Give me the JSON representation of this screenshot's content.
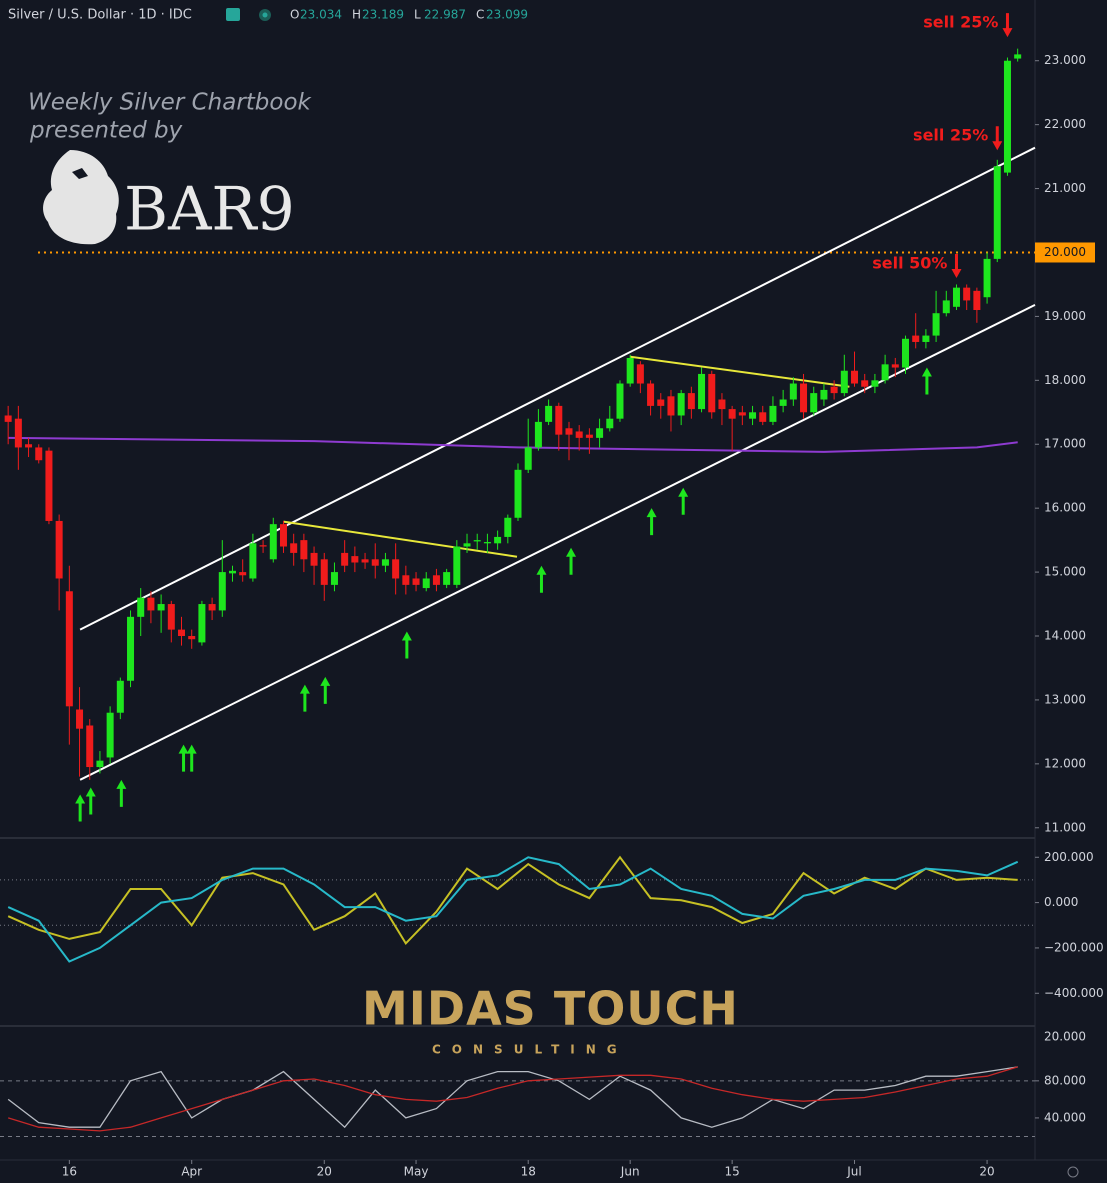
{
  "chart_data": {
    "type": "candlestick",
    "title": "Silver / U.S. Dollar · 1D · IDC",
    "ohlc_header": [
      {
        "label": "O",
        "value": "23.034"
      },
      {
        "label": "H",
        "value": "23.189"
      },
      {
        "label": "L",
        "value": "22.987"
      },
      {
        "label": "C",
        "value": "23.099"
      }
    ],
    "watermark": {
      "line1": "Weekly Silver Chartbook",
      "line2": "presented by",
      "brand": "BAR9",
      "company": "MIDAS TOUCH",
      "tagline": "CONSULTING"
    },
    "xlim": [
      -0.8,
      100.7
    ],
    "xticks": [
      {
        "value": 6,
        "label": "16"
      },
      {
        "value": 18,
        "label": "Apr"
      },
      {
        "value": 31,
        "label": "20"
      },
      {
        "value": 40,
        "label": "May"
      },
      {
        "value": 51,
        "label": "18"
      },
      {
        "value": 61,
        "label": "Jun"
      },
      {
        "value": 71,
        "label": "15"
      },
      {
        "value": 83,
        "label": "Jul"
      },
      {
        "value": 96,
        "label": "20"
      }
    ],
    "ylim": [
      10.84,
      23.95
    ],
    "yticks": [
      {
        "value": 23,
        "label": "23.000"
      },
      {
        "value": 22,
        "label": "22.000"
      },
      {
        "value": 21,
        "label": "21.000"
      },
      {
        "value": 20,
        "label": "20.000"
      },
      {
        "value": 19,
        "label": "19.000"
      },
      {
        "value": 18,
        "label": "18.000"
      },
      {
        "value": 17,
        "label": "17.000"
      },
      {
        "value": 16,
        "label": "16.000"
      },
      {
        "value": 15,
        "label": "15.000"
      },
      {
        "value": 14,
        "label": "14.000"
      },
      {
        "value": 13,
        "label": "13.000"
      },
      {
        "value": 12,
        "label": "12.000"
      },
      {
        "value": 11,
        "label": "11.000"
      }
    ],
    "up_color": "#1ee61e",
    "down_color": "#f01c1c",
    "open": [
      17.45,
      17.4,
      17.0,
      16.95,
      16.9,
      15.8,
      14.7,
      12.85,
      12.6,
      11.95,
      12.1,
      12.8,
      13.3,
      14.3,
      14.6,
      14.4,
      14.5,
      14.1,
      14.0,
      13.9,
      14.5,
      14.4,
      14.98,
      15.0,
      14.9,
      15.42,
      15.2,
      15.75,
      15.45,
      15.5,
      15.3,
      15.2,
      14.8,
      15.3,
      15.25,
      15.2,
      15.2,
      15.1,
      15.2,
      14.95,
      14.9,
      14.75,
      14.95,
      14.8,
      14.8,
      15.4,
      15.48,
      15.45,
      15.45,
      15.55,
      15.85,
      16.6,
      16.95,
      17.35,
      17.6,
      17.25,
      17.2,
      17.15,
      17.1,
      17.25,
      17.4,
      17.95,
      18.25,
      17.95,
      17.7,
      17.75,
      17.45,
      17.8,
      17.55,
      18.1,
      17.7,
      17.55,
      17.5,
      17.4,
      17.5,
      17.35,
      17.6,
      17.7,
      17.95,
      17.5,
      17.7,
      17.9,
      17.8,
      18.15,
      18.0,
      17.9,
      18.0,
      18.25,
      18.2,
      18.7,
      18.6,
      18.7,
      19.05,
      19.15,
      19.45,
      19.4,
      19.3,
      19.9,
      21.25,
      23.034
    ],
    "high": [
      17.6,
      17.6,
      17.1,
      17.0,
      16.95,
      15.9,
      15.1,
      13.2,
      12.7,
      12.2,
      12.9,
      13.35,
      14.4,
      14.75,
      14.7,
      14.65,
      14.55,
      14.3,
      14.1,
      14.55,
      14.6,
      15.5,
      15.1,
      15.2,
      15.6,
      15.5,
      15.85,
      15.8,
      15.6,
      15.6,
      15.4,
      15.3,
      15.15,
      15.5,
      15.4,
      15.3,
      15.45,
      15.3,
      15.45,
      15.1,
      15.0,
      15.0,
      15.05,
      15.05,
      15.5,
      15.6,
      15.6,
      15.6,
      15.65,
      15.9,
      16.7,
      17.4,
      17.55,
      17.7,
      17.65,
      17.35,
      17.3,
      17.25,
      17.4,
      17.6,
      18.0,
      18.4,
      18.3,
      18.0,
      17.8,
      17.85,
      17.85,
      17.9,
      18.2,
      18.15,
      17.8,
      17.6,
      17.6,
      17.6,
      17.6,
      17.75,
      17.85,
      18.05,
      18.1,
      17.9,
      17.95,
      18.0,
      18.4,
      18.45,
      18.1,
      18.1,
      18.4,
      18.35,
      18.7,
      19.05,
      18.8,
      19.4,
      19.4,
      19.5,
      19.5,
      19.45,
      20.0,
      21.45,
      23.05,
      23.189
    ],
    "low": [
      17.0,
      16.6,
      16.8,
      16.7,
      15.75,
      14.4,
      12.3,
      11.8,
      11.75,
      11.85,
      12.0,
      12.7,
      13.2,
      14.0,
      14.2,
      14.05,
      13.9,
      13.85,
      13.8,
      13.85,
      14.25,
      14.3,
      14.85,
      14.85,
      14.85,
      15.3,
      15.15,
      15.3,
      15.1,
      15.0,
      14.8,
      14.55,
      14.7,
      15.0,
      15.0,
      15.05,
      14.9,
      15.0,
      14.65,
      14.65,
      14.7,
      14.7,
      14.7,
      14.75,
      14.75,
      15.3,
      15.35,
      15.3,
      15.35,
      15.45,
      15.8,
      16.55,
      16.9,
      17.3,
      16.9,
      16.75,
      16.9,
      16.85,
      16.95,
      17.2,
      17.35,
      17.9,
      17.8,
      17.45,
      17.4,
      17.2,
      17.3,
      17.4,
      17.5,
      17.4,
      17.3,
      16.9,
      17.3,
      17.3,
      17.3,
      17.3,
      17.5,
      17.6,
      17.4,
      17.45,
      17.6,
      17.7,
      17.75,
      17.9,
      17.8,
      17.8,
      17.95,
      18.05,
      18.1,
      18.5,
      18.5,
      18.6,
      19.0,
      19.1,
      19.1,
      18.9,
      19.2,
      19.85,
      21.2,
      22.987
    ],
    "close": [
      17.35,
      16.95,
      16.95,
      16.75,
      15.8,
      14.9,
      12.9,
      12.55,
      11.95,
      12.05,
      12.8,
      13.3,
      14.3,
      14.6,
      14.4,
      14.5,
      14.1,
      14.0,
      13.95,
      14.5,
      14.4,
      15.0,
      15.02,
      14.95,
      15.45,
      15.4,
      15.75,
      15.4,
      15.3,
      15.2,
      15.1,
      14.8,
      15.0,
      15.1,
      15.15,
      15.15,
      15.1,
      15.2,
      14.9,
      14.8,
      14.8,
      14.9,
      14.8,
      15.0,
      15.4,
      15.45,
      15.5,
      15.47,
      15.55,
      15.85,
      16.6,
      16.95,
      17.35,
      17.6,
      17.15,
      17.15,
      17.1,
      17.1,
      17.25,
      17.4,
      17.95,
      18.35,
      17.95,
      17.6,
      17.6,
      17.45,
      17.8,
      17.55,
      18.1,
      17.5,
      17.55,
      17.4,
      17.45,
      17.5,
      17.35,
      17.6,
      17.7,
      17.95,
      17.5,
      17.8,
      17.85,
      17.8,
      18.15,
      17.95,
      17.9,
      18.0,
      18.25,
      18.2,
      18.65,
      18.6,
      18.7,
      19.05,
      19.25,
      19.45,
      19.25,
      19.1,
      19.9,
      21.35,
      23.0,
      23.099
    ],
    "lines": [
      {
        "x": [
          7.06,
          100.7
        ],
        "y": [
          14.1,
          21.64
        ],
        "color": "#ffffff"
      },
      {
        "x": [
          7.06,
          100.7
        ],
        "y": [
          11.75,
          19.18
        ],
        "color": "#ffffff"
      },
      {
        "x": [
          27,
          49.9
        ],
        "y": [
          15.79,
          15.24
        ],
        "color": "#e8e83a"
      },
      {
        "x": [
          61,
          82.5
        ],
        "y": [
          18.37,
          17.9
        ],
        "color": "#e8e83a"
      },
      {
        "x": [
          0,
          30,
          50,
          80,
          95,
          99
        ],
        "y": [
          17.1,
          17.05,
          16.95,
          16.88,
          16.95,
          17.03
        ],
        "color": "#8e3bd1"
      }
    ],
    "price_line": {
      "value": 20,
      "label": "20.000",
      "color": "#ff9800"
    },
    "buy_arrows": {
      "color": "#1ee61e",
      "x": [
        7.06,
        8.1,
        11.1,
        17.2,
        18.0,
        29.1,
        31.1,
        39.1,
        52.3,
        55.2,
        63.1,
        66.2,
        90.1
      ],
      "y": [
        11.52,
        11.63,
        11.75,
        12.3,
        12.3,
        13.24,
        13.36,
        14.07,
        15.1,
        15.38,
        16.0,
        16.32,
        18.2
      ]
    },
    "sell_arrows": {
      "color": "#f01c1c",
      "labels": [
        "sell 25%",
        "sell 25%",
        "sell 50%"
      ],
      "x": [
        98,
        97,
        93
      ],
      "y": [
        23.37,
        21.6,
        19.6
      ]
    },
    "panels": [
      {
        "ylim": [
          -540,
          285
        ],
        "yticks": [
          {
            "value": 200,
            "label": "200.000"
          },
          {
            "value": 0,
            "label": "0.000"
          },
          {
            "value": -200,
            "label": "−200.000"
          },
          {
            "value": -400,
            "label": "−400.000"
          }
        ],
        "levels": [
          100,
          -100
        ],
        "x": [
          0,
          3,
          6,
          9,
          12,
          15,
          18,
          21,
          24,
          27,
          30,
          33,
          36,
          39,
          42,
          45,
          48,
          51,
          54,
          57,
          60,
          63,
          66,
          69,
          72,
          75,
          78,
          81,
          84,
          87,
          90,
          93,
          96,
          99
        ],
        "series": [
          {
            "color": "#c6c024",
            "values": [
              -60,
              -120,
              -160,
              -130,
              60,
              60,
              -100,
              110,
              130,
              80,
              -120,
              -60,
              40,
              -180,
              -40,
              150,
              60,
              170,
              80,
              20,
              200,
              20,
              10,
              -20,
              -90,
              -50,
              130,
              40,
              110,
              60,
              150,
              100,
              110,
              100
            ]
          },
          {
            "color": "#27b9c9",
            "values": [
              -20,
              -80,
              -260,
              -200,
              -100,
              0,
              20,
              100,
              150,
              150,
              80,
              -20,
              -20,
              -80,
              -60,
              100,
              120,
              200,
              170,
              60,
              80,
              150,
              60,
              30,
              -50,
              -70,
              30,
              60,
              100,
              100,
              150,
              140,
              120,
              180
            ]
          }
        ]
      },
      {
        "ylim": [
          0,
          137
        ],
        "top_label": "20.000",
        "yticks": [
          {
            "value": 80,
            "label": "80.000"
          },
          {
            "value": 40,
            "label": "40.000"
          }
        ],
        "levels": [
          80,
          20
        ],
        "x": [
          0,
          3,
          6,
          9,
          12,
          15,
          18,
          21,
          24,
          27,
          30,
          33,
          36,
          39,
          42,
          45,
          48,
          51,
          54,
          57,
          60,
          63,
          66,
          69,
          72,
          75,
          78,
          81,
          84,
          87,
          90,
          93,
          96,
          99
        ],
        "series": [
          {
            "color": "#b8bcc4",
            "values": [
              60,
              35,
              30,
              30,
              80,
              90,
              40,
              60,
              70,
              90,
              60,
              30,
              70,
              40,
              50,
              80,
              90,
              90,
              80,
              60,
              85,
              70,
              40,
              30,
              40,
              60,
              50,
              70,
              70,
              75,
              85,
              85,
              90,
              95
            ]
          },
          {
            "color": "#c62828",
            "values": [
              40,
              30,
              28,
              26,
              30,
              40,
              50,
              60,
              70,
              80,
              82,
              75,
              65,
              60,
              58,
              62,
              72,
              80,
              82,
              84,
              86,
              86,
              82,
              72,
              65,
              60,
              58,
              60,
              62,
              68,
              75,
              82,
              85,
              95
            ]
          }
        ]
      }
    ]
  }
}
